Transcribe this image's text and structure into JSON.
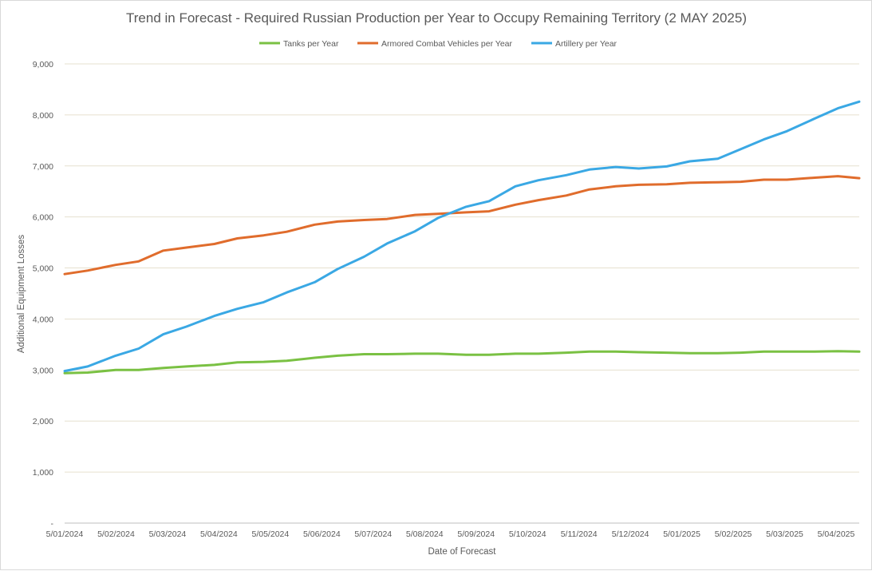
{
  "chart_data": {
    "type": "line",
    "title": "Trend in Forecast - Required Russian Production per Year to Occupy Remaining Territory (2 MAY 2025)",
    "xlabel": "Date of Forecast",
    "ylabel": "Additional Equipment Losses",
    "ylim": [
      0,
      9000
    ],
    "yticks": [
      "-",
      "1,000",
      "2,000",
      "3,000",
      "4,000",
      "5,000",
      "6,000",
      "7,000",
      "8,000",
      "9,000"
    ],
    "x_tick_labels": [
      "5/01/2024",
      "5/02/2024",
      "5/03/2024",
      "5/04/2024",
      "5/05/2024",
      "5/06/2024",
      "5/07/2024",
      "5/08/2024",
      "5/09/2024",
      "5/10/2024",
      "5/11/2024",
      "5/12/2024",
      "5/01/2025",
      "5/02/2025",
      "5/03/2025",
      "5/04/2025"
    ],
    "grid": true,
    "legend_position": "top",
    "series": [
      {
        "name": "Tanks per Year",
        "color": "#7ac143",
        "points": [
          [
            "2024-01-05",
            2940
          ],
          [
            "2024-01-19",
            2950
          ],
          [
            "2024-02-05",
            3000
          ],
          [
            "2024-02-19",
            3000
          ],
          [
            "2024-03-05",
            3040
          ],
          [
            "2024-03-19",
            3070
          ],
          [
            "2024-04-05",
            3100
          ],
          [
            "2024-04-19",
            3150
          ],
          [
            "2024-05-05",
            3160
          ],
          [
            "2024-05-19",
            3180
          ],
          [
            "2024-06-05",
            3240
          ],
          [
            "2024-06-19",
            3280
          ],
          [
            "2024-07-05",
            3310
          ],
          [
            "2024-07-19",
            3310
          ],
          [
            "2024-08-05",
            3320
          ],
          [
            "2024-08-19",
            3320
          ],
          [
            "2024-09-05",
            3300
          ],
          [
            "2024-09-19",
            3300
          ],
          [
            "2024-10-05",
            3320
          ],
          [
            "2024-10-19",
            3320
          ],
          [
            "2024-11-05",
            3340
          ],
          [
            "2024-11-19",
            3360
          ],
          [
            "2024-12-05",
            3360
          ],
          [
            "2024-12-19",
            3350
          ],
          [
            "2025-01-05",
            3340
          ],
          [
            "2025-01-19",
            3330
          ],
          [
            "2025-02-05",
            3330
          ],
          [
            "2025-02-19",
            3340
          ],
          [
            "2025-03-05",
            3360
          ],
          [
            "2025-03-19",
            3360
          ],
          [
            "2025-04-05",
            3360
          ],
          [
            "2025-04-19",
            3370
          ],
          [
            "2025-05-02",
            3360
          ]
        ]
      },
      {
        "name": "Armored Combat Vehicles per Year",
        "color": "#e06c2c",
        "points": [
          [
            "2024-01-05",
            4880
          ],
          [
            "2024-01-19",
            4950
          ],
          [
            "2024-02-05",
            5060
          ],
          [
            "2024-02-19",
            5130
          ],
          [
            "2024-03-05",
            5340
          ],
          [
            "2024-03-19",
            5400
          ],
          [
            "2024-04-05",
            5470
          ],
          [
            "2024-04-19",
            5580
          ],
          [
            "2024-05-05",
            5640
          ],
          [
            "2024-05-19",
            5710
          ],
          [
            "2024-06-05",
            5850
          ],
          [
            "2024-06-19",
            5910
          ],
          [
            "2024-07-05",
            5940
          ],
          [
            "2024-07-19",
            5960
          ],
          [
            "2024-08-05",
            6040
          ],
          [
            "2024-08-19",
            6060
          ],
          [
            "2024-09-05",
            6090
          ],
          [
            "2024-09-19",
            6110
          ],
          [
            "2024-10-05",
            6240
          ],
          [
            "2024-10-19",
            6330
          ],
          [
            "2024-11-05",
            6420
          ],
          [
            "2024-11-19",
            6540
          ],
          [
            "2024-12-05",
            6600
          ],
          [
            "2024-12-19",
            6630
          ],
          [
            "2025-01-05",
            6640
          ],
          [
            "2025-01-19",
            6670
          ],
          [
            "2025-02-05",
            6680
          ],
          [
            "2025-02-19",
            6690
          ],
          [
            "2025-03-05",
            6730
          ],
          [
            "2025-03-19",
            6730
          ],
          [
            "2025-04-05",
            6770
          ],
          [
            "2025-04-19",
            6800
          ],
          [
            "2025-05-02",
            6760
          ]
        ]
      },
      {
        "name": "Artillery per Year",
        "color": "#3aa8e4",
        "points": [
          [
            "2024-01-05",
            2980
          ],
          [
            "2024-01-19",
            3070
          ],
          [
            "2024-02-05",
            3280
          ],
          [
            "2024-02-19",
            3420
          ],
          [
            "2024-03-05",
            3700
          ],
          [
            "2024-03-19",
            3850
          ],
          [
            "2024-04-05",
            4060
          ],
          [
            "2024-04-19",
            4200
          ],
          [
            "2024-05-05",
            4330
          ],
          [
            "2024-05-19",
            4520
          ],
          [
            "2024-06-05",
            4720
          ],
          [
            "2024-06-19",
            4980
          ],
          [
            "2024-07-05",
            5220
          ],
          [
            "2024-07-19",
            5480
          ],
          [
            "2024-08-05",
            5720
          ],
          [
            "2024-08-19",
            5980
          ],
          [
            "2024-09-05",
            6200
          ],
          [
            "2024-09-19",
            6310
          ],
          [
            "2024-10-05",
            6600
          ],
          [
            "2024-10-19",
            6720
          ],
          [
            "2024-11-05",
            6820
          ],
          [
            "2024-11-19",
            6930
          ],
          [
            "2024-12-05",
            6980
          ],
          [
            "2024-12-19",
            6950
          ],
          [
            "2025-01-05",
            6990
          ],
          [
            "2025-01-19",
            7090
          ],
          [
            "2025-02-05",
            7140
          ],
          [
            "2025-02-19",
            7330
          ],
          [
            "2025-03-05",
            7520
          ],
          [
            "2025-03-19",
            7680
          ],
          [
            "2025-04-05",
            7930
          ],
          [
            "2025-04-19",
            8130
          ],
          [
            "2025-05-02",
            8260
          ]
        ]
      }
    ]
  }
}
